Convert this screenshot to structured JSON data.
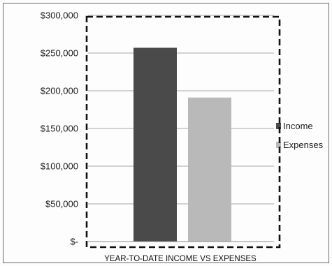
{
  "chart_data": {
    "type": "bar",
    "title": "",
    "xlabel": "",
    "ylabel": "",
    "categories": [
      "YEAR-TO-DATE INCOME VS EXPENSES"
    ],
    "series": [
      {
        "name": "Income",
        "values": [
          257000
        ],
        "color": "#4a4a4a"
      },
      {
        "name": "Expenses",
        "values": [
          191000
        ],
        "color": "#b9b9b9"
      }
    ],
    "ylim": [
      0,
      300000
    ],
    "yticks": [
      0,
      50000,
      100000,
      150000,
      200000,
      250000,
      300000
    ],
    "ytick_labels": [
      "$-",
      "$50,000",
      "$100,000",
      "$150,000",
      "$200,000",
      "$250,000",
      "$300,000"
    ],
    "grid": true,
    "legend_position": "right",
    "annotation": "dashed rectangle highlighting the plot area"
  }
}
